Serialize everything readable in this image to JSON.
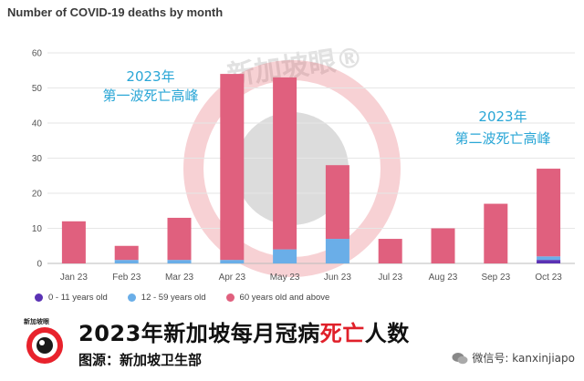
{
  "chart_data": {
    "type": "bar",
    "stacked": true,
    "title": "Number of COVID-19 deaths by month",
    "categories": [
      "Jan 23",
      "Feb 23",
      "Mar 23",
      "Apr 23",
      "May 23",
      "Jun 23",
      "Jul 23",
      "Aug 23",
      "Sep 23",
      "Oct 23"
    ],
    "series": [
      {
        "name": "0 - 11 years old",
        "color": "#5a32b4",
        "values": [
          0,
          0,
          0,
          0,
          0,
          0,
          0,
          0,
          0,
          1
        ]
      },
      {
        "name": "12 - 59 years old",
        "color": "#6aaee8",
        "values": [
          0,
          1,
          1,
          1,
          4,
          7,
          0,
          0,
          0,
          1
        ]
      },
      {
        "name": "60 years old and above",
        "color": "#e0607e",
        "values": [
          12,
          4,
          12,
          53,
          49,
          21,
          7,
          10,
          17,
          25
        ]
      }
    ],
    "ylim": [
      0,
      60
    ],
    "yticks": [
      0,
      10,
      20,
      30,
      40,
      50,
      60
    ],
    "grid": true,
    "legend_position": "bottom-left",
    "annotations": [
      {
        "line1": "2023年",
        "line2": "第一波死亡高峰",
        "category": "Feb 23"
      },
      {
        "line1": "2023年",
        "line2": "第二波死亡高峰",
        "category": "Sep 23"
      }
    ]
  },
  "watermark": {
    "text": "新加坡眼®"
  },
  "footer": {
    "headline_pre": "2023年新加坡每月冠病",
    "headline_red": "死亡",
    "headline_post": "人数",
    "source": "图源：新加坡卫生部",
    "logo_text": "新加坡眼",
    "wechat": "微信号: kanxinjiapo"
  },
  "colors": {
    "accent": "#29a6d6",
    "bar_main": "#e0607e",
    "bar_mid": "#6aaee8",
    "bar_young": "#5a32b4"
  }
}
